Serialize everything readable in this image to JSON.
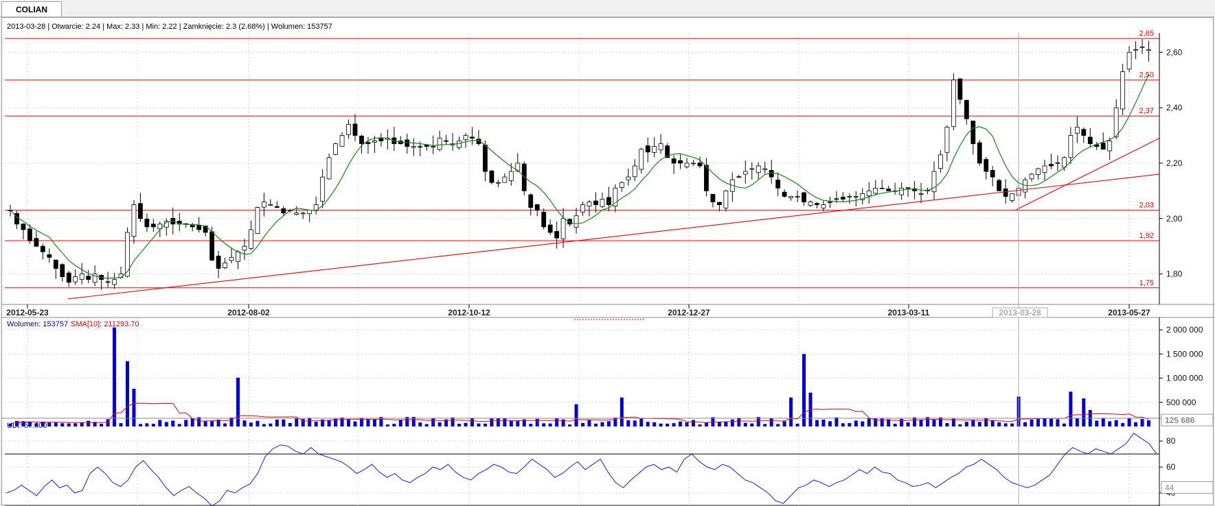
{
  "tab": {
    "label": "COLIAN"
  },
  "header": {
    "ohlc": "2013-03-28 | Otwarcie: 2.24 | Max: 2.33 | Min: 2.22 | Zamknięcie: 2.3 (2.68%)  | Wolumen: 153757"
  },
  "volume_header": {
    "label": "Wolumen: 153757",
    "sma_label": "SMA[10]: 211293.70"
  },
  "ult_header": {
    "label": "ULT: 57.600"
  },
  "crosshair": {
    "date_label": "2013-03-28",
    "volume_marker": "125 686",
    "ult_marker": "44"
  },
  "colors": {
    "up": "#000000",
    "down": "#000000",
    "sma": "#118a11",
    "level": "#ee0000",
    "volume": "#0000dd",
    "volume_sma": "#ee0000",
    "ult": "#1a1aee"
  },
  "chart_data": [
    {
      "type": "candlestick",
      "title": "COLIAN",
      "x_tick_labels": [
        "2012-05-23",
        "2012-08-02",
        "2012-10-12",
        "2012-12-27",
        "2013-03-11",
        "2013-05-27"
      ],
      "y_tick_labels": [
        "1,80",
        "2,00",
        "2,20",
        "2,40",
        "2,60"
      ],
      "ylim": [
        1.7,
        2.67
      ],
      "levels": [
        {
          "value": 2.65,
          "label": "2,65"
        },
        {
          "value": 2.5,
          "label": "2,50"
        },
        {
          "value": 2.37,
          "label": "2,37"
        },
        {
          "value": 2.03,
          "label": "2,03"
        },
        {
          "value": 1.92,
          "label": "1,92"
        },
        {
          "value": 1.75,
          "label": "1,75"
        }
      ],
      "trendlines": [
        {
          "from": [
            "2012-06-05",
            1.71
          ],
          "to": [
            "2013-05-31",
            2.16
          ]
        },
        {
          "from": [
            "2013-04-12",
            2.03
          ],
          "to": [
            "2013-05-31",
            2.29
          ]
        }
      ],
      "close_series": [
        2.03,
        1.98,
        1.96,
        1.92,
        1.9,
        1.88,
        1.86,
        1.82,
        1.79,
        1.77,
        1.79,
        1.8,
        1.78,
        1.8,
        1.78,
        1.77,
        1.78,
        1.8,
        1.95,
        2.05,
        2.0,
        1.97,
        1.97,
        1.98,
        1.99,
        1.98,
        1.98,
        1.98,
        1.97,
        1.96,
        1.95,
        1.85,
        1.82,
        1.84,
        1.86,
        1.88,
        1.9,
        1.96,
        2.04,
        2.06,
        2.05,
        2.04,
        2.02,
        2.03,
        2.02,
        2.02,
        2.03,
        2.05,
        2.15,
        2.22,
        2.27,
        2.3,
        2.34,
        2.3,
        2.27,
        2.27,
        2.28,
        2.28,
        2.29,
        2.27,
        2.27,
        2.26,
        2.26,
        2.26,
        2.26,
        2.26,
        2.29,
        2.28,
        2.27,
        2.28,
        2.3,
        2.29,
        2.27,
        2.17,
        2.13,
        2.13,
        2.15,
        2.17,
        2.2,
        2.1,
        2.04,
        2.03,
        1.97,
        1.95,
        1.93,
        2.0,
        1.98,
        2.01,
        2.05,
        2.06,
        2.05,
        2.07,
        2.05,
        2.11,
        2.13,
        2.15,
        2.19,
        2.25,
        2.24,
        2.26,
        2.27,
        2.22,
        2.2,
        2.2,
        2.2,
        2.2,
        2.19,
        2.1,
        2.06,
        2.05,
        2.1,
        2.14,
        2.15,
        2.17,
        2.18,
        2.19,
        2.18,
        2.15,
        2.11,
        2.08,
        2.08,
        2.08,
        2.06,
        2.06,
        2.05,
        2.05,
        2.06,
        2.07,
        2.07,
        2.08,
        2.08,
        2.09,
        2.1,
        2.11,
        2.11,
        2.1,
        2.1,
        2.11,
        2.11,
        2.1,
        2.09,
        2.1,
        2.17,
        2.23,
        2.33,
        2.5,
        2.43,
        2.36,
        2.27,
        2.2,
        2.17,
        2.15,
        2.1,
        2.08,
        2.09,
        2.11,
        2.14,
        2.16,
        2.18,
        2.19,
        2.19,
        2.2,
        2.22,
        2.3,
        2.33,
        2.3,
        2.27,
        2.26,
        2.25,
        2.28,
        2.4,
        2.53,
        2.6,
        2.61,
        2.62,
        2.61
      ]
    },
    {
      "type": "bar",
      "title": "Wolumen",
      "y_tick_labels": [
        "500 000",
        "1 000 000",
        "1 500 000",
        "2 000 000"
      ],
      "ylim": [
        0,
        2100000
      ],
      "spikes": [
        {
          "index": 16,
          "value": 2050000
        },
        {
          "index": 18,
          "value": 1350000
        },
        {
          "index": 19,
          "value": 780000
        },
        {
          "index": 35,
          "value": 1010000
        },
        {
          "index": 87,
          "value": 460000
        },
        {
          "index": 94,
          "value": 600000
        },
        {
          "index": 120,
          "value": 600000
        },
        {
          "index": 122,
          "value": 1500000
        },
        {
          "index": 123,
          "value": 700000
        },
        {
          "index": 155,
          "value": 620000
        },
        {
          "index": 163,
          "value": 720000
        },
        {
          "index": 165,
          "value": 580000
        },
        {
          "index": 166,
          "value": 340000
        }
      ],
      "sma_label": "SMA[10]"
    },
    {
      "type": "line",
      "title": "ULT",
      "y_tick_labels": [
        "40",
        "60",
        "80"
      ],
      "ylim": [
        30,
        88
      ],
      "levels": [
        70,
        30
      ],
      "values": [
        40,
        42,
        46,
        42,
        38,
        45,
        50,
        44,
        46,
        40,
        42,
        55,
        60,
        55,
        48,
        45,
        50,
        60,
        65,
        58,
        52,
        44,
        38,
        42,
        45,
        40,
        36,
        30,
        34,
        42,
        40,
        44,
        47,
        55,
        68,
        74,
        77,
        76,
        72,
        70,
        75,
        70,
        68,
        66,
        64,
        60,
        55,
        58,
        62,
        56,
        52,
        55,
        50,
        48,
        52,
        55,
        60,
        58,
        62,
        56,
        52,
        50,
        55,
        58,
        62,
        60,
        56,
        55,
        60,
        66,
        62,
        58,
        52,
        55,
        60,
        64,
        58,
        62,
        66,
        56,
        48,
        44,
        50,
        55,
        60,
        62,
        58,
        60,
        56,
        66,
        70,
        64,
        60,
        58,
        62,
        60,
        55,
        50,
        48,
        44,
        40,
        34,
        32,
        38,
        44,
        46,
        50,
        48,
        45,
        48,
        50,
        54,
        58,
        55,
        60,
        56,
        55,
        50,
        48,
        45,
        46,
        48,
        44,
        48,
        52,
        55,
        60,
        62,
        66,
        62,
        58,
        52,
        48,
        46,
        44,
        46,
        50,
        54,
        62,
        70,
        75,
        72,
        70,
        74,
        72,
        70,
        74,
        78,
        86,
        82,
        78,
        70
      ]
    }
  ]
}
